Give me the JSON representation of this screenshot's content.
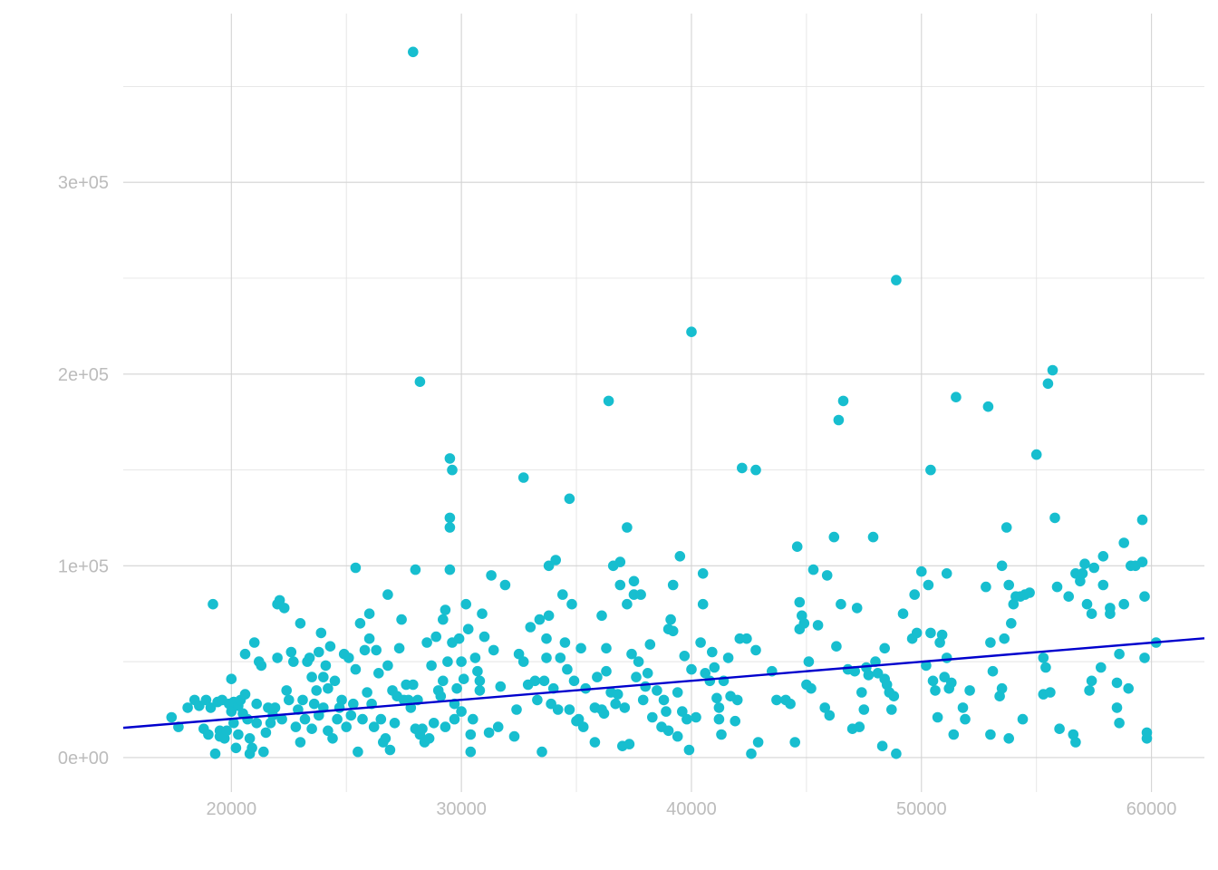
{
  "chart_data": {
    "type": "scatter",
    "title": "",
    "xlabel": "",
    "ylabel": "",
    "xlim": [
      15300,
      62300
    ],
    "ylim": [
      -18000,
      388000
    ],
    "x_ticks": [
      20000,
      30000,
      40000,
      50000,
      60000
    ],
    "x_tick_labels": [
      "20000",
      "30000",
      "40000",
      "50000",
      "60000"
    ],
    "y_ticks": [
      0,
      100000,
      200000,
      300000
    ],
    "y_tick_labels": [
      "0e+00",
      "1e+05",
      "2e+05",
      "3e+05"
    ],
    "grid": true,
    "legend": "none",
    "point_color": "#17becf",
    "trend_color": "#0000cd",
    "trend_line": {
      "x": [
        15300,
        62300
      ],
      "y": [
        15500,
        62200
      ]
    },
    "points": [
      [
        17400,
        21000
      ],
      [
        17700,
        16000
      ],
      [
        18100,
        26000
      ],
      [
        18400,
        30000
      ],
      [
        18600,
        27000
      ],
      [
        18800,
        15000
      ],
      [
        18900,
        30000
      ],
      [
        19000,
        12000
      ],
      [
        19100,
        26000
      ],
      [
        19200,
        80000
      ],
      [
        19300,
        2000
      ],
      [
        19400,
        29000
      ],
      [
        19500,
        11000
      ],
      [
        19500,
        14000
      ],
      [
        19600,
        30000
      ],
      [
        19700,
        10000
      ],
      [
        19800,
        14000
      ],
      [
        19900,
        28000
      ],
      [
        20000,
        41000
      ],
      [
        20000,
        24000
      ],
      [
        20100,
        29000
      ],
      [
        20100,
        18000
      ],
      [
        20200,
        5000
      ],
      [
        20300,
        27000
      ],
      [
        20300,
        12000
      ],
      [
        20400,
        30000
      ],
      [
        20500,
        23000
      ],
      [
        20600,
        54000
      ],
      [
        20600,
        33000
      ],
      [
        20700,
        20000
      ],
      [
        20800,
        2000
      ],
      [
        20800,
        10000
      ],
      [
        20900,
        5000
      ],
      [
        21000,
        60000
      ],
      [
        21100,
        18000
      ],
      [
        21100,
        28000
      ],
      [
        21200,
        50000
      ],
      [
        21300,
        48000
      ],
      [
        21400,
        3000
      ],
      [
        21500,
        13000
      ],
      [
        21600,
        26000
      ],
      [
        21700,
        18000
      ],
      [
        21800,
        22000
      ],
      [
        21900,
        26000
      ],
      [
        22000,
        80000
      ],
      [
        22000,
        52000
      ],
      [
        22100,
        82000
      ],
      [
        22200,
        20000
      ],
      [
        22300,
        78000
      ],
      [
        22400,
        35000
      ],
      [
        22500,
        30000
      ],
      [
        22600,
        55000
      ],
      [
        22700,
        50000
      ],
      [
        22800,
        16000
      ],
      [
        22900,
        25000
      ],
      [
        23000,
        70000
      ],
      [
        23000,
        8000
      ],
      [
        23100,
        30000
      ],
      [
        23200,
        20000
      ],
      [
        23300,
        50000
      ],
      [
        23400,
        52000
      ],
      [
        23500,
        15000
      ],
      [
        23500,
        42000
      ],
      [
        23600,
        28000
      ],
      [
        23700,
        35000
      ],
      [
        23800,
        55000
      ],
      [
        23800,
        22000
      ],
      [
        23900,
        65000
      ],
      [
        24000,
        42000
      ],
      [
        24000,
        26000
      ],
      [
        24100,
        48000
      ],
      [
        24200,
        36000
      ],
      [
        24200,
        14000
      ],
      [
        24300,
        58000
      ],
      [
        24400,
        10000
      ],
      [
        24500,
        40000
      ],
      [
        24600,
        20000
      ],
      [
        24700,
        26000
      ],
      [
        24800,
        30000
      ],
      [
        24900,
        54000
      ],
      [
        25000,
        16000
      ],
      [
        25100,
        52000
      ],
      [
        25200,
        22000
      ],
      [
        25300,
        28000
      ],
      [
        25400,
        99000
      ],
      [
        25400,
        46000
      ],
      [
        25500,
        3000
      ],
      [
        25600,
        70000
      ],
      [
        25700,
        20000
      ],
      [
        25800,
        56000
      ],
      [
        25900,
        34000
      ],
      [
        26000,
        75000
      ],
      [
        26000,
        62000
      ],
      [
        26100,
        28000
      ],
      [
        26200,
        16000
      ],
      [
        26300,
        56000
      ],
      [
        26400,
        44000
      ],
      [
        26500,
        20000
      ],
      [
        26600,
        8000
      ],
      [
        26700,
        10000
      ],
      [
        26800,
        85000
      ],
      [
        26800,
        48000
      ],
      [
        26900,
        4000
      ],
      [
        27000,
        35000
      ],
      [
        27100,
        18000
      ],
      [
        27200,
        32000
      ],
      [
        27300,
        57000
      ],
      [
        27400,
        72000
      ],
      [
        27500,
        30000
      ],
      [
        27600,
        38000
      ],
      [
        27700,
        30000
      ],
      [
        27800,
        26000
      ],
      [
        27900,
        38000
      ],
      [
        27900,
        368000
      ],
      [
        28000,
        98000
      ],
      [
        28000,
        15000
      ],
      [
        28100,
        30000
      ],
      [
        28200,
        12000
      ],
      [
        28200,
        196000
      ],
      [
        28300,
        15000
      ],
      [
        28400,
        8000
      ],
      [
        28500,
        60000
      ],
      [
        28600,
        10000
      ],
      [
        28700,
        48000
      ],
      [
        28800,
        18000
      ],
      [
        28900,
        63000
      ],
      [
        29000,
        35000
      ],
      [
        29100,
        32000
      ],
      [
        29200,
        40000
      ],
      [
        29200,
        72000
      ],
      [
        29300,
        77000
      ],
      [
        29300,
        16000
      ],
      [
        29400,
        50000
      ],
      [
        29500,
        98000
      ],
      [
        29500,
        125000
      ],
      [
        29500,
        120000
      ],
      [
        29500,
        156000
      ],
      [
        29600,
        150000
      ],
      [
        29600,
        60000
      ],
      [
        29700,
        20000
      ],
      [
        29700,
        28000
      ],
      [
        29800,
        36000
      ],
      [
        29900,
        62000
      ],
      [
        30000,
        50000
      ],
      [
        30000,
        24000
      ],
      [
        30100,
        41000
      ],
      [
        30200,
        80000
      ],
      [
        30300,
        67000
      ],
      [
        30400,
        3000
      ],
      [
        30400,
        12000
      ],
      [
        30500,
        20000
      ],
      [
        30600,
        52000
      ],
      [
        30700,
        45000
      ],
      [
        30800,
        40000
      ],
      [
        30800,
        35000
      ],
      [
        30900,
        75000
      ],
      [
        31000,
        63000
      ],
      [
        31200,
        13000
      ],
      [
        31300,
        95000
      ],
      [
        31400,
        56000
      ],
      [
        31600,
        16000
      ],
      [
        31700,
        37000
      ],
      [
        31900,
        90000
      ],
      [
        32300,
        11000
      ],
      [
        32400,
        25000
      ],
      [
        32500,
        54000
      ],
      [
        32700,
        146000
      ],
      [
        32700,
        50000
      ],
      [
        32900,
        38000
      ],
      [
        33000,
        68000
      ],
      [
        33200,
        40000
      ],
      [
        33300,
        30000
      ],
      [
        33400,
        72000
      ],
      [
        33500,
        3000
      ],
      [
        33600,
        40000
      ],
      [
        33700,
        62000
      ],
      [
        33700,
        52000
      ],
      [
        33800,
        100000
      ],
      [
        33800,
        74000
      ],
      [
        33900,
        28000
      ],
      [
        34000,
        36000
      ],
      [
        34100,
        103000
      ],
      [
        34200,
        25000
      ],
      [
        34300,
        52000
      ],
      [
        34400,
        85000
      ],
      [
        34500,
        60000
      ],
      [
        34600,
        46000
      ],
      [
        34700,
        25000
      ],
      [
        34700,
        135000
      ],
      [
        34800,
        80000
      ],
      [
        34900,
        40000
      ],
      [
        35000,
        19000
      ],
      [
        35100,
        20000
      ],
      [
        35200,
        57000
      ],
      [
        35300,
        16000
      ],
      [
        35400,
        36000
      ],
      [
        35800,
        8000
      ],
      [
        35800,
        26000
      ],
      [
        35900,
        42000
      ],
      [
        36100,
        74000
      ],
      [
        36100,
        25000
      ],
      [
        36200,
        23000
      ],
      [
        36300,
        57000
      ],
      [
        36300,
        45000
      ],
      [
        36400,
        186000
      ],
      [
        36500,
        34000
      ],
      [
        36600,
        100000
      ],
      [
        36700,
        28000
      ],
      [
        36800,
        33000
      ],
      [
        36900,
        90000
      ],
      [
        36900,
        102000
      ],
      [
        37000,
        6000
      ],
      [
        37100,
        26000
      ],
      [
        37200,
        80000
      ],
      [
        37200,
        120000
      ],
      [
        37300,
        7000
      ],
      [
        37400,
        54000
      ],
      [
        37500,
        92000
      ],
      [
        37500,
        85000
      ],
      [
        37600,
        42000
      ],
      [
        37700,
        50000
      ],
      [
        37800,
        85000
      ],
      [
        37900,
        30000
      ],
      [
        38000,
        37000
      ],
      [
        38100,
        44000
      ],
      [
        38200,
        59000
      ],
      [
        38300,
        21000
      ],
      [
        38500,
        35000
      ],
      [
        38700,
        16000
      ],
      [
        38800,
        30000
      ],
      [
        38900,
        24000
      ],
      [
        39000,
        67000
      ],
      [
        39000,
        14000
      ],
      [
        39100,
        72000
      ],
      [
        39200,
        90000
      ],
      [
        39200,
        66000
      ],
      [
        39400,
        34000
      ],
      [
        39400,
        11000
      ],
      [
        39500,
        105000
      ],
      [
        39600,
        24000
      ],
      [
        39700,
        53000
      ],
      [
        39800,
        20000
      ],
      [
        39900,
        4000
      ],
      [
        40000,
        46000
      ],
      [
        40000,
        222000
      ],
      [
        40200,
        21000
      ],
      [
        40400,
        60000
      ],
      [
        40500,
        96000
      ],
      [
        40500,
        80000
      ],
      [
        40600,
        44000
      ],
      [
        40800,
        40000
      ],
      [
        40900,
        55000
      ],
      [
        41000,
        47000
      ],
      [
        41100,
        31000
      ],
      [
        41200,
        20000
      ],
      [
        41200,
        26000
      ],
      [
        41300,
        12000
      ],
      [
        41400,
        40000
      ],
      [
        41600,
        52000
      ],
      [
        41700,
        32000
      ],
      [
        41900,
        19000
      ],
      [
        42000,
        30000
      ],
      [
        42100,
        62000
      ],
      [
        42200,
        151000
      ],
      [
        42400,
        62000
      ],
      [
        42600,
        2000
      ],
      [
        42800,
        56000
      ],
      [
        42800,
        150000
      ],
      [
        42900,
        8000
      ],
      [
        43500,
        45000
      ],
      [
        43700,
        30000
      ],
      [
        44100,
        30000
      ],
      [
        44300,
        28000
      ],
      [
        44500,
        8000
      ],
      [
        44600,
        110000
      ],
      [
        44700,
        81000
      ],
      [
        44700,
        67000
      ],
      [
        44800,
        74000
      ],
      [
        44900,
        70000
      ],
      [
        45000,
        38000
      ],
      [
        45100,
        50000
      ],
      [
        45200,
        36000
      ],
      [
        45300,
        98000
      ],
      [
        45500,
        69000
      ],
      [
        45800,
        26000
      ],
      [
        45900,
        95000
      ],
      [
        46000,
        22000
      ],
      [
        46200,
        115000
      ],
      [
        46300,
        58000
      ],
      [
        46400,
        176000
      ],
      [
        46500,
        80000
      ],
      [
        46600,
        186000
      ],
      [
        46800,
        46000
      ],
      [
        47000,
        15000
      ],
      [
        47100,
        45000
      ],
      [
        47200,
        78000
      ],
      [
        47300,
        16000
      ],
      [
        47400,
        34000
      ],
      [
        47500,
        25000
      ],
      [
        47600,
        47000
      ],
      [
        47700,
        43000
      ],
      [
        47900,
        115000
      ],
      [
        48000,
        50000
      ],
      [
        48100,
        44000
      ],
      [
        48300,
        6000
      ],
      [
        48400,
        57000
      ],
      [
        48400,
        41000
      ],
      [
        48500,
        38000
      ],
      [
        48600,
        34000
      ],
      [
        48700,
        25000
      ],
      [
        48800,
        32000
      ],
      [
        48900,
        2000
      ],
      [
        48900,
        249000
      ],
      [
        49200,
        75000
      ],
      [
        49600,
        62000
      ],
      [
        49700,
        85000
      ],
      [
        49800,
        65000
      ],
      [
        50000,
        97000
      ],
      [
        50200,
        48000
      ],
      [
        50300,
        90000
      ],
      [
        50400,
        65000
      ],
      [
        50400,
        150000
      ],
      [
        50500,
        40000
      ],
      [
        50600,
        35000
      ],
      [
        50700,
        21000
      ],
      [
        50800,
        60000
      ],
      [
        50900,
        64000
      ],
      [
        51000,
        42000
      ],
      [
        51100,
        96000
      ],
      [
        51100,
        52000
      ],
      [
        51200,
        36000
      ],
      [
        51300,
        39000
      ],
      [
        51400,
        12000
      ],
      [
        51500,
        188000
      ],
      [
        51800,
        26000
      ],
      [
        51900,
        20000
      ],
      [
        52100,
        35000
      ],
      [
        52800,
        89000
      ],
      [
        52900,
        183000
      ],
      [
        53000,
        12000
      ],
      [
        53000,
        60000
      ],
      [
        53100,
        45000
      ],
      [
        53400,
        32000
      ],
      [
        53500,
        36000
      ],
      [
        53500,
        100000
      ],
      [
        53600,
        62000
      ],
      [
        53700,
        120000
      ],
      [
        53800,
        90000
      ],
      [
        53800,
        10000
      ],
      [
        53900,
        70000
      ],
      [
        54000,
        80000
      ],
      [
        54100,
        84000
      ],
      [
        54300,
        84000
      ],
      [
        54400,
        20000
      ],
      [
        54500,
        85000
      ],
      [
        54700,
        86000
      ],
      [
        55000,
        158000
      ],
      [
        55300,
        52000
      ],
      [
        55300,
        33000
      ],
      [
        55400,
        47000
      ],
      [
        55500,
        195000
      ],
      [
        55600,
        34000
      ],
      [
        55700,
        202000
      ],
      [
        55800,
        125000
      ],
      [
        55900,
        89000
      ],
      [
        56000,
        15000
      ],
      [
        56400,
        84000
      ],
      [
        56600,
        12000
      ],
      [
        56700,
        8000
      ],
      [
        56700,
        96000
      ],
      [
        56900,
        92000
      ],
      [
        57000,
        96000
      ],
      [
        57100,
        101000
      ],
      [
        57200,
        80000
      ],
      [
        57300,
        35000
      ],
      [
        57400,
        40000
      ],
      [
        57400,
        75000
      ],
      [
        57500,
        99000
      ],
      [
        57800,
        47000
      ],
      [
        57900,
        105000
      ],
      [
        57900,
        90000
      ],
      [
        58200,
        75000
      ],
      [
        58200,
        78000
      ],
      [
        58500,
        26000
      ],
      [
        58500,
        39000
      ],
      [
        58600,
        18000
      ],
      [
        58600,
        54000
      ],
      [
        58800,
        80000
      ],
      [
        58800,
        112000
      ],
      [
        59000,
        36000
      ],
      [
        59100,
        100000
      ],
      [
        59300,
        100000
      ],
      [
        59600,
        102000
      ],
      [
        59600,
        124000
      ],
      [
        59700,
        84000
      ],
      [
        59700,
        52000
      ],
      [
        59800,
        10000
      ],
      [
        59800,
        13000
      ],
      [
        60200,
        60000
      ]
    ]
  }
}
